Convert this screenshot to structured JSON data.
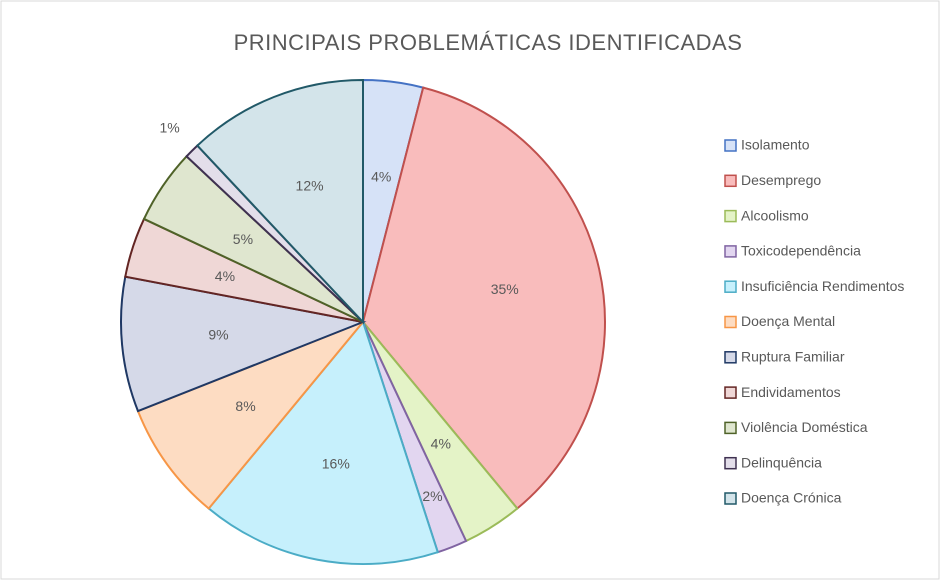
{
  "chart_data": {
    "type": "pie",
    "title": "PRINCIPAIS  PROBLEMÁTICAS  IDENTIFICADAS",
    "categories": [
      "Isolamento",
      "Desemprego",
      "Alcoolismo",
      "Toxicodependência",
      "Insuficiência Rendimentos",
      "Doença Mental",
      "Ruptura Familiar",
      "Endividamentos",
      "Violência Doméstica",
      "Delinquência",
      "Doença Crónica"
    ],
    "values": [
      4,
      35,
      4,
      2,
      16,
      8,
      9,
      4,
      5,
      1,
      12
    ],
    "value_labels": [
      "4%",
      "35%",
      "4%",
      "2%",
      "16%",
      "8%",
      "9%",
      "4%",
      "5%",
      "1%",
      "12%"
    ],
    "colors": [
      "#4472c4",
      "#c0504d",
      "#9bbb59",
      "#8064a2",
      "#4bacc6",
      "#f79646",
      "#1f3864",
      "#632523",
      "#4f6228",
      "#3f3151",
      "#215968"
    ],
    "fills": [
      "#d6e2f7",
      "#f9bcbc",
      "#e4f3c7",
      "#e2d6f0",
      "#c6f0fc",
      "#fddcc2",
      "#d5d9e8",
      "#efd7d6",
      "#dfe6cf",
      "#e3deea",
      "#d3e4ea"
    ],
    "legend": "right"
  }
}
